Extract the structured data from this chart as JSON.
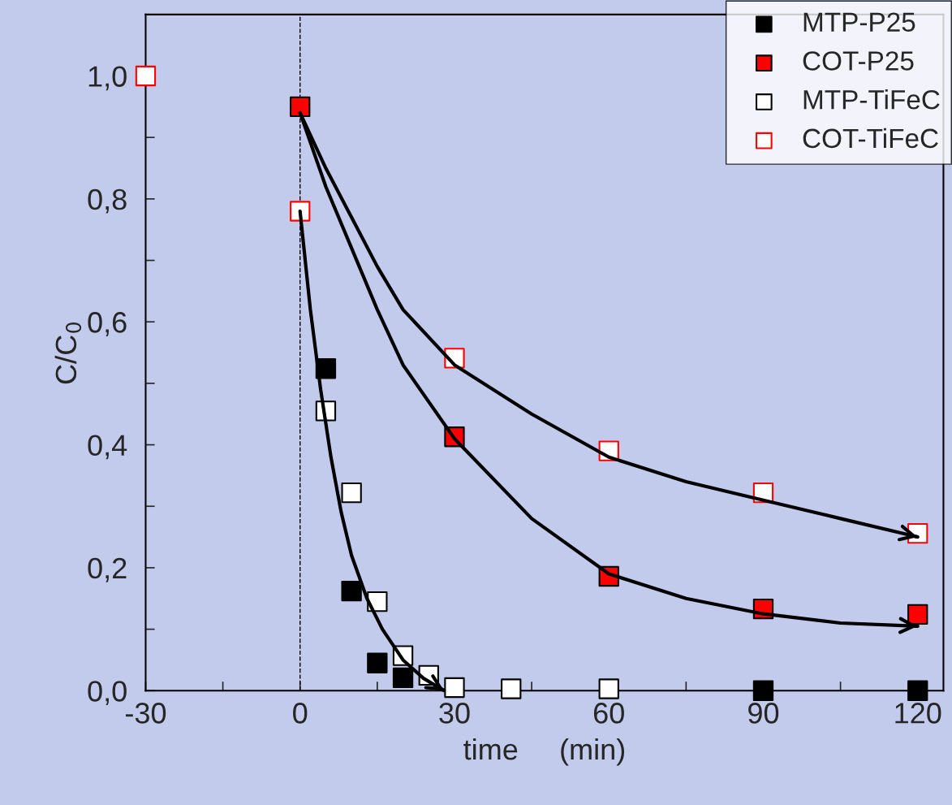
{
  "chart_data": {
    "type": "scatter",
    "xlabel": "time     (min)",
    "ylabel": "C/C$_{0}$",
    "xlim": [
      -30,
      125
    ],
    "ylim": [
      0,
      1.1
    ],
    "xticks": [
      -30,
      {
        "value": -15,
        "label": null
      },
      {
        "value": 0,
        "label": "0"
      },
      {
        "value": 15,
        "label": null
      },
      30,
      {
        "value": 45,
        "label": null
      },
      60,
      {
        "value": 75,
        "label": null
      },
      90,
      {
        "value": 105,
        "label": null
      },
      120
    ],
    "yticks": [
      {
        "value": 0,
        "label": "0,0"
      },
      {
        "value": 0.1,
        "label": null
      },
      {
        "value": 0.2,
        "label": "0,2"
      },
      {
        "value": 0.3,
        "label": null
      },
      {
        "value": 0.4,
        "label": "0,4"
      },
      {
        "value": 0.5,
        "label": null
      },
      {
        "value": 0.6,
        "label": "0,6"
      },
      {
        "value": 0.7,
        "label": null
      },
      {
        "value": 0.8,
        "label": "0,8"
      },
      {
        "value": 0.9,
        "label": null
      },
      {
        "value": 1.0,
        "label": "1,0"
      }
    ],
    "legend": "top right",
    "marker": "square",
    "grid": false,
    "ref_lines": [
      {
        "axis": "x",
        "value": 0,
        "label": null,
        "color": "#000000",
        "line_style": "dashed"
      }
    ],
    "series": [
      {
        "name": "MTP-P25",
        "colors": [
          "#000000",
          "#000000",
          "#000000",
          "#000000",
          "#000000",
          "#000000"
        ],
        "x": [
          5,
          10,
          15,
          20,
          90,
          120
        ],
        "values": [
          0.524,
          0.162,
          0.045,
          0.021,
          0.0,
          0.0
        ]
      },
      {
        "name": "COT-P25",
        "colors": [
          "#ff0000",
          "#ff0000",
          "#ff0000",
          "#ff0000",
          "#ff0000"
        ],
        "x": [
          0,
          30,
          60,
          90,
          120
        ],
        "values": [
          0.95,
          0.413,
          0.186,
          0.133,
          0.124
        ]
      },
      {
        "name": "MTP-TiFeC",
        "color": "#000000",
        "x": [
          5,
          10,
          15,
          20,
          25,
          30,
          41,
          60
        ],
        "values": [
          0.455,
          0.322,
          0.145,
          0.057,
          0.025,
          0.005,
          0.003,
          0.003
        ]
      },
      {
        "name": "COT-TiFeC",
        "color": "#ff0000",
        "x": [
          -30,
          0,
          30,
          60,
          90,
          120
        ],
        "values": [
          1.0,
          0.78,
          0.541,
          0.39,
          0.322,
          0.256
        ]
      },
      {
        "type": "line",
        "marker": "none",
        "color": "#000000",
        "x": [
          0,
          2,
          4,
          6,
          8,
          10,
          13,
          16,
          20,
          24,
          28
        ],
        "values": [
          0.78,
          0.62,
          0.49,
          0.38,
          0.29,
          0.22,
          0.15,
          0.1,
          0.05,
          0.02,
          0.0
        ]
      },
      {
        "type": "line",
        "marker": "none",
        "color": "#000000",
        "x": [
          0,
          5,
          10,
          15,
          20,
          30,
          45,
          60,
          75,
          90,
          105,
          120
        ],
        "values": [
          0.94,
          0.82,
          0.72,
          0.62,
          0.53,
          0.41,
          0.28,
          0.19,
          0.15,
          0.125,
          0.11,
          0.105
        ]
      },
      {
        "type": "line",
        "marker": "none",
        "color": "#000000",
        "x": [
          0,
          5,
          10,
          15,
          20,
          30,
          45,
          60,
          75,
          90,
          105,
          120
        ],
        "values": [
          0.94,
          0.85,
          0.77,
          0.69,
          0.62,
          0.53,
          0.45,
          0.38,
          0.34,
          0.31,
          0.28,
          0.25
        ]
      }
    ]
  }
}
